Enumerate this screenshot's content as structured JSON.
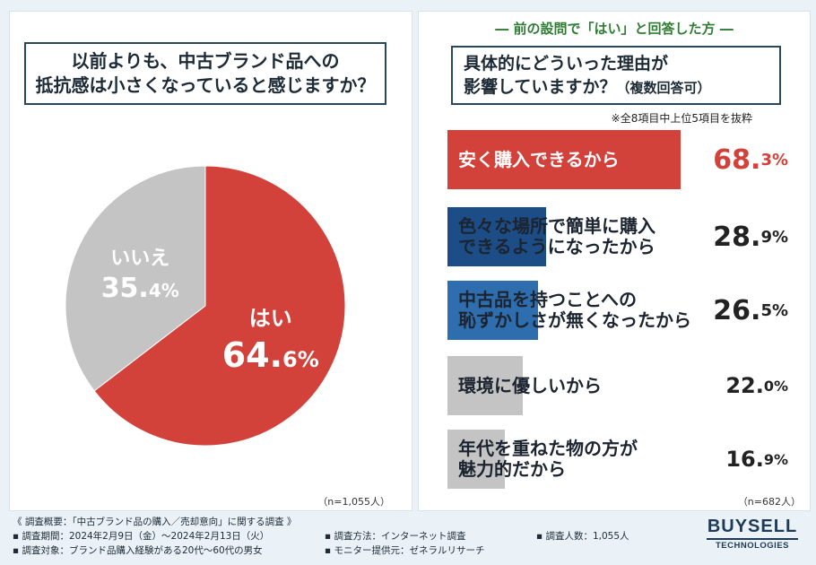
{
  "colors": {
    "accent_red": "#d2413a",
    "accent_navy": "#1d4d86",
    "accent_blue": "#2e6eae",
    "gray": "#c4c4c4",
    "heading_green": "#2f7d34"
  },
  "left": {
    "question": "以前よりも、中古ブランド品への\n抵抗感は小さくなっていると感じますか？",
    "sample": "（n=1,055人）"
  },
  "right": {
    "heading": "― 前の設問で「はい」と回答した方 ―",
    "question_main": "具体的にどういった理由が\n影響していますか？",
    "question_sub": "（複数回答可）",
    "note": "※全8項目中上位5項目を抜粋",
    "sample": "（n=682人）"
  },
  "chart_data": [
    {
      "type": "pie",
      "title": "以前よりも、中古ブランド品への抵抗感は小さくなっていると感じますか？",
      "slices": [
        {
          "label": "はい",
          "value": 64.6,
          "value_big": "64.",
          "value_small": "6%",
          "color": "#d2413a"
        },
        {
          "label": "いいえ",
          "value": 35.4,
          "value_big": "35.",
          "value_small": "4%",
          "color": "#c4c4c4"
        }
      ]
    },
    {
      "type": "bar",
      "orientation": "horizontal",
      "title": "具体的にどういった理由が影響していますか？（複数回答可）",
      "unit": "%",
      "xlim": [
        0,
        100
      ],
      "bars": [
        {
          "label": "安く購入できるから",
          "value": 68.3,
          "value_big": "68.",
          "value_small": "3%",
          "color": "#d2413a"
        },
        {
          "label": "色々な場所で簡単に購入\nできるようになったから",
          "value": 28.9,
          "value_big": "28.",
          "value_small": "9%",
          "color": "#1d4d86"
        },
        {
          "label": "中古品を持つことへの\n恥ずかしさが無くなったから",
          "value": 26.5,
          "value_big": "26.",
          "value_small": "5%",
          "color": "#2e6eae"
        },
        {
          "label": "環境に優しいから",
          "value": 22.0,
          "value_big": "22.",
          "value_small": "0%",
          "color": "#c4c4c4"
        },
        {
          "label": "年代を重ねた物の方が\n魅力的だから",
          "value": 16.9,
          "value_big": "16.",
          "value_small": "9%",
          "color": "#c4c4c4"
        }
      ]
    }
  ],
  "footer": {
    "overview": "《 調査概要：「中古ブランド品の購入／売却意向」に関する調査 》",
    "period": "▪ 調査期間：2024年2月9日（金）〜2024年2月13日（火）",
    "method": "▪ 調査方法：インターネット調査",
    "count": "▪ 調査人数：1,055人",
    "target": "▪ 調査対象：ブランド品購入経験がある20代〜60代の男女",
    "provider": "▪ モニター提供元：ゼネラルリサーチ"
  },
  "logo": {
    "main": "BUYSELL",
    "sub": "TECHNOLOGIES"
  }
}
